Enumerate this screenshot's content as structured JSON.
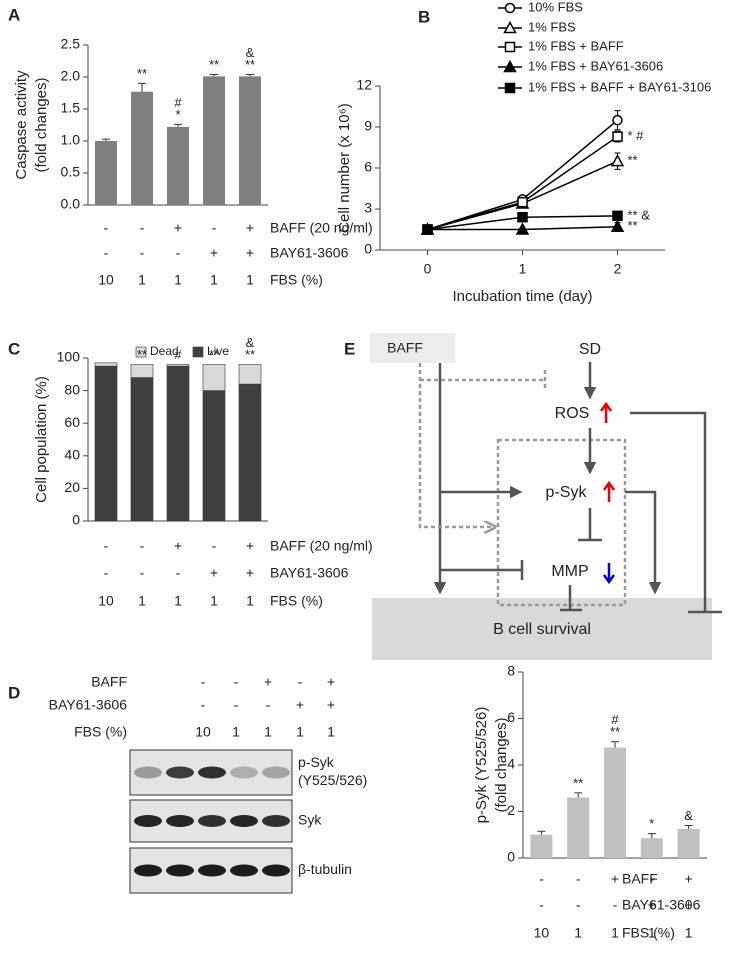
{
  "chart_data": [
    {
      "type": "bar",
      "panel": "A",
      "ylabel": [
        "Caspase activity",
        "(fold changes)"
      ],
      "values": [
        1.0,
        1.77,
        1.22,
        2.01,
        2.01
      ],
      "errors": [
        0.03,
        0.13,
        0.04,
        0.03,
        0.03
      ],
      "color": "#7f7f7f",
      "ylim": [
        0,
        2.5
      ],
      "yticks": [
        {
          "value": 0,
          "label": "0.0"
        },
        {
          "value": 0.5,
          "label": "0.5"
        },
        {
          "value": 1,
          "label": "1.0"
        },
        {
          "value": 1.5,
          "label": "1.5"
        },
        {
          "value": 2,
          "label": "2.0"
        },
        {
          "value": 2.5,
          "label": "2.5"
        }
      ],
      "significance": [
        [],
        [
          "**"
        ],
        [
          "#",
          "*"
        ],
        [
          "**"
        ],
        [
          "&",
          "**"
        ]
      ],
      "treatments": [
        {
          "label": "BAFF (20 ng/ml)",
          "marks": [
            "-",
            "-",
            "+",
            "-",
            "+"
          ]
        },
        {
          "label": "BAY61-3606",
          "marks": [
            "-",
            "-",
            "-",
            "+",
            "+"
          ]
        },
        {
          "label": "FBS (%)",
          "marks": [
            "10",
            "1",
            "1",
            "1",
            "1"
          ]
        }
      ]
    },
    {
      "type": "line",
      "panel": "B",
      "ylabel": [
        "Cell number (x 10⁶)"
      ],
      "xlabel": "Incubation time (day)",
      "x": [
        0,
        1,
        2
      ],
      "xlim": [
        -0.5,
        2.5
      ],
      "xticks": [
        0,
        1,
        2
      ],
      "ylim": [
        0,
        12
      ],
      "yticks": [
        0,
        3,
        6,
        9,
        12
      ],
      "series": [
        {
          "name": "10% FBS",
          "color": "#000000",
          "marker": "circle",
          "filled": false,
          "values": [
            1.5,
            3.7,
            9.5
          ],
          "errors": [
            0.1,
            0.2,
            0.7
          ]
        },
        {
          "name": "1% FBS",
          "color": "#000000",
          "marker": "triangle",
          "filled": false,
          "values": [
            1.5,
            3.4,
            6.5
          ],
          "errors": [
            0.1,
            0.2,
            0.6
          ],
          "annotation": "**"
        },
        {
          "name": "1% FBS + BAFF",
          "color": "#000000",
          "marker": "square",
          "filled": false,
          "values": [
            1.5,
            3.5,
            8.3
          ],
          "errors": [
            0.1,
            0.2,
            0.4
          ],
          "annotation": "* #"
        },
        {
          "name": "1% FBS + BAY61-3606",
          "color": "#000000",
          "marker": "triangle",
          "filled": true,
          "values": [
            1.5,
            1.5,
            1.7
          ],
          "errors": [
            0.05,
            0.1,
            0.3
          ],
          "annotation": "**"
        },
        {
          "name": "1% FBS + BAFF + BAY61-3106",
          "color": "#000000",
          "marker": "square",
          "filled": true,
          "values": [
            1.5,
            2.4,
            2.5
          ],
          "errors": [
            0.05,
            0.1,
            0.1
          ],
          "annotation": "** &"
        }
      ]
    },
    {
      "type": "bar",
      "panel": "C",
      "stacked": true,
      "ylabel": [
        "Cell population (%)"
      ],
      "ylim": [
        0,
        100
      ],
      "yticks": [
        0,
        20,
        40,
        60,
        80,
        100
      ],
      "series": [
        {
          "name": "Live",
          "color": "#404040",
          "values": [
            95,
            88,
            95,
            80,
            84
          ]
        },
        {
          "name": "Dead",
          "color": "#d9d9d9",
          "values": [
            2,
            8,
            1,
            16,
            12
          ]
        }
      ],
      "significance": [
        [],
        [
          "**"
        ],
        [
          "#"
        ],
        [
          "**"
        ],
        [
          "&",
          "**"
        ]
      ],
      "treatments": [
        {
          "label": "BAFF (20 ng/ml)",
          "marks": [
            "-",
            "-",
            "+",
            "-",
            "+"
          ]
        },
        {
          "label": "BAY61-3606",
          "marks": [
            "-",
            "-",
            "-",
            "+",
            "+"
          ]
        },
        {
          "label": "FBS (%)",
          "marks": [
            "10",
            "1",
            "1",
            "1",
            "1"
          ]
        }
      ]
    },
    {
      "type": "bar",
      "ylabel": [
        "p-Syk (Y525/526)",
        "(fold changes)"
      ],
      "values": [
        1.0,
        2.6,
        4.75,
        0.85,
        1.25
      ],
      "errors": [
        0.15,
        0.2,
        0.25,
        0.2,
        0.15
      ],
      "color": "#c0c0c0",
      "ylim": [
        0,
        8
      ],
      "yticks": [
        0,
        2,
        4,
        6,
        8
      ],
      "significance": [
        [],
        [
          "**"
        ],
        [
          "#",
          "**"
        ],
        [
          "*"
        ],
        [
          "&"
        ]
      ],
      "treatments": [
        {
          "label": "BAFF",
          "marks": [
            "-",
            "-",
            "+",
            "-",
            "+"
          ]
        },
        {
          "label": "BAY61-3606",
          "marks": [
            "-",
            "-",
            "-",
            "+",
            "+"
          ]
        },
        {
          "label": "FBS (%)",
          "marks": [
            "10",
            "1",
            "1",
            "1",
            "1"
          ]
        }
      ]
    }
  ],
  "blot": {
    "panel": "D",
    "treatments": [
      {
        "label": "BAFF",
        "marks": [
          "-",
          "-",
          "+",
          "-",
          "+"
        ]
      },
      {
        "label": "BAY61-3606",
        "marks": [
          "-",
          "-",
          "-",
          "+",
          "+"
        ]
      },
      {
        "label": "FBS (%)",
        "marks": [
          "10",
          "1",
          "1",
          "1",
          "1"
        ]
      }
    ],
    "rows": [
      [
        "p-Syk",
        "(Y525/526)"
      ],
      [
        "Syk"
      ],
      [
        "β-tubulin"
      ]
    ]
  },
  "diagram": {
    "panel": "E",
    "baff": "BAFF",
    "sd": "SD",
    "ros": "ROS",
    "psyk": "p-Syk",
    "mmp": "MMP",
    "survival": "B cell survival"
  }
}
